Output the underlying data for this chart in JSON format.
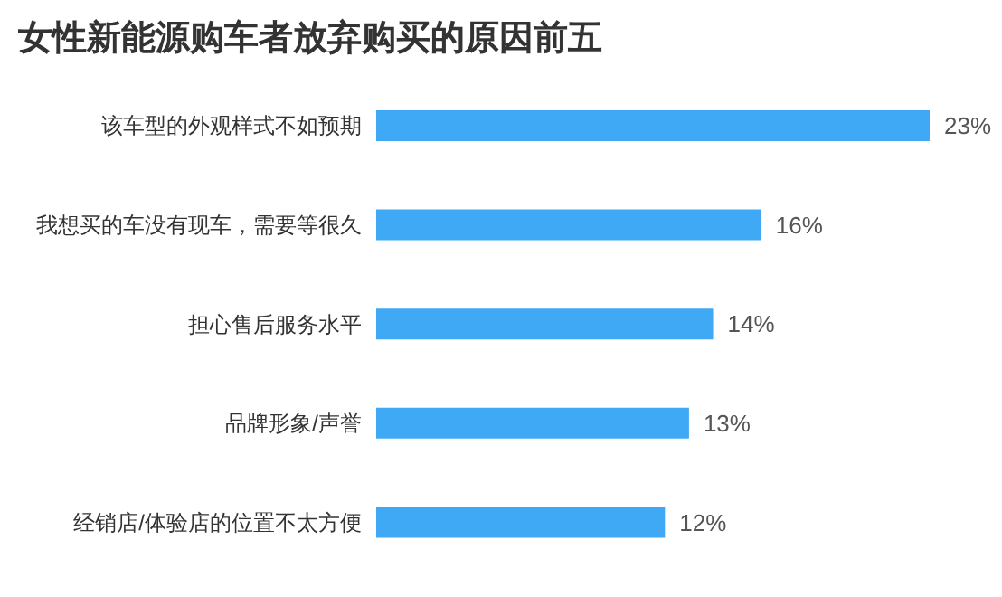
{
  "chart_data": {
    "type": "bar",
    "orientation": "horizontal",
    "title": "女性新能源购车者放弃购买的原因前五",
    "categories": [
      "该车型的外观样式不如预期",
      "我想买的车没有现车，需要等很久",
      "担心售后服务水平",
      "品牌形象/声誉",
      "经销店/体验店的位置不太方便"
    ],
    "values": [
      23,
      16,
      14,
      13,
      12
    ],
    "color": "#3fa9f5",
    "value_labels": [
      "23%",
      "16%",
      "14%",
      "13%",
      "12%"
    ],
    "grid": false
  }
}
